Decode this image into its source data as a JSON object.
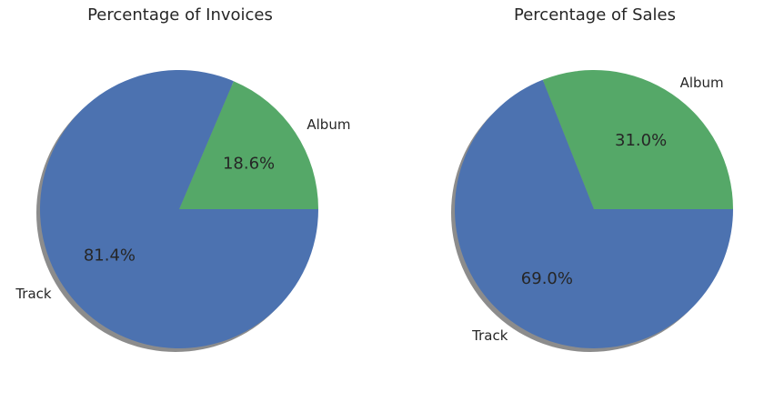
{
  "chart_data": [
    {
      "type": "pie",
      "title": "Percentage of Invoices",
      "categories": [
        "Album",
        "Track"
      ],
      "values": [
        18.6,
        81.4
      ],
      "value_labels": [
        "18.6%",
        "81.4%"
      ],
      "colors": [
        "#55a868",
        "#4c72b0"
      ],
      "shadow": true
    },
    {
      "type": "pie",
      "title": "Percentage of Sales",
      "categories": [
        "Album",
        "Track"
      ],
      "values": [
        31.0,
        69.0
      ],
      "value_labels": [
        "31.0%",
        "69.0%"
      ],
      "colors": [
        "#55a868",
        "#4c72b0"
      ],
      "shadow": true
    }
  ]
}
